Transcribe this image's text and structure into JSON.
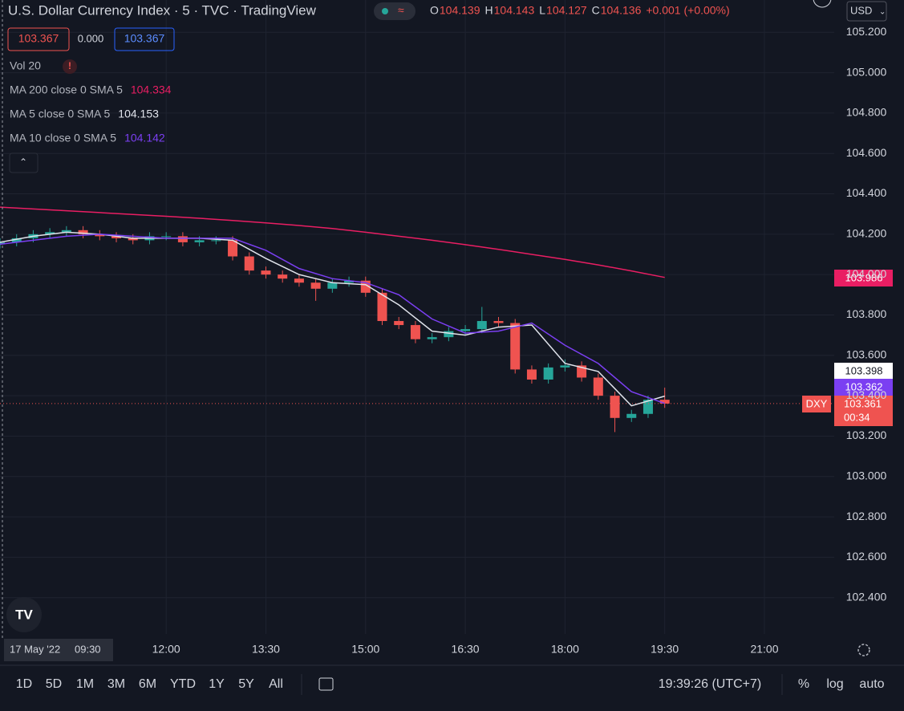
{
  "header": {
    "title": "U.S. Dollar Currency Index · 5 · TVC · TradingView",
    "ohlc": [
      {
        "label": "O",
        "value": "104.139"
      },
      {
        "label": "H",
        "value": "104.143"
      },
      {
        "label": "L",
        "value": "104.127"
      },
      {
        "label": "C",
        "value": "104.136"
      }
    ],
    "change": "+0.001 (+0.00%)",
    "currency": "USD"
  },
  "quote_boxes": [
    "103.367",
    "0.000",
    "103.367"
  ],
  "indicators": {
    "volume": "Vol 20",
    "warning": "!"
  },
  "chart_data": {
    "type": "candlestick",
    "x": [
      "09:30",
      "09:45",
      "10:00",
      "10:15",
      "10:30",
      "10:45",
      "11:00",
      "11:15",
      "11:30",
      "11:45",
      "12:00",
      "12:15",
      "12:30",
      "12:45",
      "13:00",
      "13:15",
      "13:30",
      "13:45",
      "14:00",
      "14:15",
      "14:30",
      "14:45",
      "15:00",
      "15:15",
      "15:30",
      "15:45",
      "16:00",
      "16:15",
      "16:30",
      "16:45",
      "17:00",
      "17:15",
      "17:30",
      "17:45",
      "18:00",
      "18:15",
      "18:30",
      "18:45",
      "19:00",
      "19:15",
      "19:30"
    ],
    "open": [
      104.15,
      104.16,
      104.18,
      104.2,
      104.21,
      104.22,
      104.2,
      104.19,
      104.18,
      104.17,
      104.19,
      104.19,
      104.16,
      104.17,
      104.17,
      104.09,
      104.02,
      104.0,
      103.98,
      103.96,
      103.93,
      103.96,
      103.97,
      103.91,
      103.77,
      103.75,
      103.68,
      103.69,
      103.72,
      103.73,
      103.77,
      103.76,
      103.53,
      103.48,
      103.54,
      103.55,
      103.49,
      103.4,
      103.29,
      103.31,
      103.38
    ],
    "high": [
      104.18,
      104.2,
      104.22,
      104.23,
      104.24,
      104.24,
      104.22,
      104.21,
      104.2,
      104.21,
      104.21,
      104.21,
      104.19,
      104.19,
      104.19,
      104.11,
      104.04,
      104.02,
      104.0,
      103.98,
      103.98,
      103.99,
      103.99,
      103.93,
      103.79,
      103.77,
      103.71,
      103.74,
      103.75,
      103.84,
      103.79,
      103.78,
      103.55,
      103.56,
      103.58,
      103.57,
      103.51,
      103.42,
      103.33,
      103.4,
      103.44
    ],
    "low": [
      104.13,
      104.14,
      104.16,
      104.18,
      104.19,
      104.18,
      104.17,
      104.16,
      104.15,
      104.15,
      104.17,
      104.14,
      104.14,
      104.15,
      104.07,
      104.0,
      103.98,
      103.96,
      103.94,
      103.87,
      103.91,
      103.94,
      103.89,
      103.75,
      103.73,
      103.66,
      103.66,
      103.67,
      103.7,
      103.71,
      103.74,
      103.51,
      103.46,
      103.46,
      103.52,
      103.47,
      103.38,
      103.22,
      103.27,
      103.29,
      103.34
    ],
    "close": [
      104.16,
      104.18,
      104.2,
      104.21,
      104.22,
      104.2,
      104.19,
      104.18,
      104.17,
      104.19,
      104.19,
      104.16,
      104.17,
      104.17,
      104.09,
      104.02,
      104.0,
      103.98,
      103.96,
      103.93,
      103.96,
      103.97,
      103.91,
      103.77,
      103.75,
      103.68,
      103.69,
      103.72,
      103.73,
      103.77,
      103.76,
      103.53,
      103.48,
      103.54,
      103.55,
      103.49,
      103.4,
      103.29,
      103.31,
      103.38,
      103.361
    ],
    "up_color": "#26a69a",
    "down_color": "#ef5350",
    "series": [
      {
        "name": "MA 200 close 0 SMA 5",
        "legend_value": "104.334",
        "color": "#e91e63",
        "x": [
          "09:30",
          "10:00",
          "10:30",
          "11:00",
          "11:30",
          "12:00",
          "12:30",
          "13:00",
          "13:30",
          "14:00",
          "14:30",
          "15:00",
          "15:30",
          "16:00",
          "16:30",
          "17:00",
          "17:30",
          "18:00",
          "18:30",
          "19:00",
          "19:30"
        ],
        "values": [
          104.334,
          104.325,
          104.316,
          104.307,
          104.298,
          104.289,
          104.279,
          104.268,
          104.256,
          104.243,
          104.228,
          104.21,
          104.19,
          104.17,
          104.148,
          104.125,
          104.1,
          104.075,
          104.048,
          104.018,
          103.986
        ]
      },
      {
        "name": "MA 5 close 0 SMA 5",
        "legend_value": "104.153",
        "color": "#e0e3eb",
        "x": [
          "09:30",
          "10:00",
          "10:30",
          "11:00",
          "11:30",
          "12:00",
          "12:30",
          "13:00",
          "13:30",
          "14:00",
          "14:30",
          "15:00",
          "15:30",
          "16:00",
          "16:30",
          "17:00",
          "17:30",
          "18:00",
          "18:30",
          "19:00",
          "19:30"
        ],
        "values": [
          104.16,
          104.19,
          104.21,
          104.2,
          104.18,
          104.18,
          104.18,
          104.17,
          104.08,
          104.0,
          103.96,
          103.95,
          103.85,
          103.72,
          103.7,
          103.74,
          103.75,
          103.56,
          103.52,
          103.35,
          103.398
        ]
      },
      {
        "name": "MA 10 close 0 SMA 5",
        "legend_value": "104.142",
        "color": "#7b3ff2",
        "x": [
          "09:30",
          "10:00",
          "10:30",
          "11:00",
          "11:30",
          "12:00",
          "12:30",
          "13:00",
          "13:30",
          "14:00",
          "14:30",
          "15:00",
          "15:30",
          "16:00",
          "16:30",
          "17:00",
          "17:30",
          "18:00",
          "18:30",
          "19:00",
          "19:30"
        ],
        "values": [
          104.15,
          104.17,
          104.19,
          104.2,
          104.19,
          104.18,
          104.18,
          104.18,
          104.12,
          104.03,
          103.98,
          103.96,
          103.9,
          103.78,
          103.71,
          103.72,
          103.76,
          103.65,
          103.56,
          103.42,
          103.362
        ]
      }
    ],
    "xlim": [
      "09:30",
      "22:03"
    ],
    "ylim": [
      102.22,
      105.36
    ],
    "xticks": [
      "12:00",
      "13:30",
      "15:00",
      "16:30",
      "18:00",
      "19:30",
      "21:00"
    ],
    "yticks": [
      {
        "value": 102.4,
        "label": "102.400"
      },
      {
        "value": 102.6,
        "label": "102.600"
      },
      {
        "value": 102.8,
        "label": "102.800"
      },
      {
        "value": 103.0,
        "label": "103.000"
      },
      {
        "value": 103.2,
        "label": "103.200"
      },
      {
        "value": 103.4,
        "label": "103.400"
      },
      {
        "value": 103.6,
        "label": "103.600"
      },
      {
        "value": 103.8,
        "label": "103.800"
      },
      {
        "value": 104.0,
        "label": "104.000"
      },
      {
        "value": 104.2,
        "label": "104.200"
      },
      {
        "value": 104.4,
        "label": "104.400"
      },
      {
        "value": 104.6,
        "label": "104.600"
      },
      {
        "value": 104.8,
        "label": "104.800"
      },
      {
        "value": 105.0,
        "label": "105.000"
      },
      {
        "value": 105.2,
        "label": "105.200"
      }
    ],
    "grid": true,
    "crosshair": {
      "date": "17 May '22",
      "time": "09:30"
    }
  },
  "price_labels": {
    "ma200": "103.986",
    "ma5": "103.398",
    "ma10": "103.362",
    "symbol": "DXY",
    "last": "103.361",
    "countdown": "00:34"
  },
  "toolbar": {
    "ranges": [
      "1D",
      "5D",
      "1M",
      "3M",
      "6M",
      "YTD",
      "1Y",
      "5Y",
      "All"
    ],
    "clock": "19:39:26 (UTC+7)",
    "percent": "%",
    "log": "log",
    "auto": "auto"
  }
}
